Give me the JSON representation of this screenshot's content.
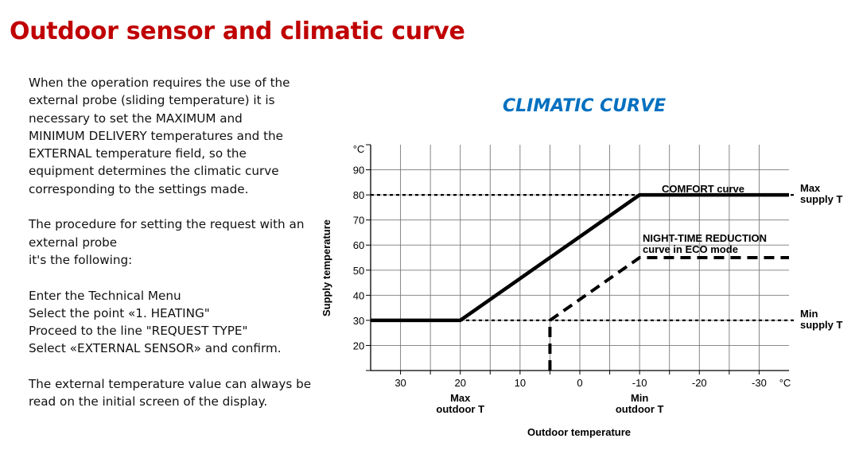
{
  "page": {
    "title": "Outdoor sensor and climatic curve",
    "paragraphs": [
      [
        "When the operation requires the use of the",
        "external probe (sliding temperature) it is",
        "necessary to set the MAXIMUM and",
        "MINIMUM DELIVERY temperatures and the",
        "EXTERNAL temperature field, so the",
        "equipment determines the climatic curve",
        "corresponding to the settings made."
      ],
      [
        "The procedure for setting the request with an",
        "external probe",
        "it's the following:"
      ],
      [
        "Enter the Technical Menu",
        "Select the point «1. HEATING\"",
        "Proceed to the line \"REQUEST TYPE\"",
        "Select «EXTERNAL SENSOR» and confirm."
      ],
      [
        "The external temperature value can always be",
        "read on the initial screen of the display."
      ]
    ]
  },
  "chart_data": {
    "type": "line",
    "title": "CLIMATIC CURVE",
    "xlabel": "Outdoor temperature",
    "ylabel": "Supply temperature",
    "x_unit": "°C",
    "y_unit": "°C",
    "xlim": [
      35,
      -35
    ],
    "ylim": [
      10,
      100
    ],
    "x_ticks": [
      30,
      20,
      10,
      0,
      -10,
      -20,
      -30
    ],
    "y_ticks": [
      20,
      30,
      40,
      50,
      60,
      70,
      80,
      90
    ],
    "grid": true,
    "x_tick_sublabels": [
      {
        "x": 20,
        "lines": [
          "Max",
          "outdoor T"
        ]
      },
      {
        "x": -10,
        "lines": [
          "Min",
          "outdoor T"
        ]
      }
    ],
    "series": [
      {
        "name": "COMFORT curve",
        "style": "solid",
        "x": [
          35,
          20,
          -10,
          -35
        ],
        "y": [
          30,
          30,
          80,
          80
        ]
      },
      {
        "name": "NIGHT-TIME REDUCTION curve in ECO mode",
        "name_lines": [
          "NIGHT-TIME REDUCTION",
          "curve in ECO mode"
        ],
        "style": "dashed",
        "x": [
          5,
          5,
          -10,
          -35
        ],
        "y": [
          10,
          30,
          55,
          55
        ]
      }
    ],
    "reference_lines": [
      {
        "axis": "y",
        "value": 80,
        "lines": [
          "Max",
          "supply T"
        ]
      },
      {
        "axis": "y",
        "value": 30,
        "lines": [
          "Min",
          "supply T"
        ]
      }
    ],
    "colors": {
      "curves": "#000000",
      "grid": "#7a7a7a"
    }
  }
}
